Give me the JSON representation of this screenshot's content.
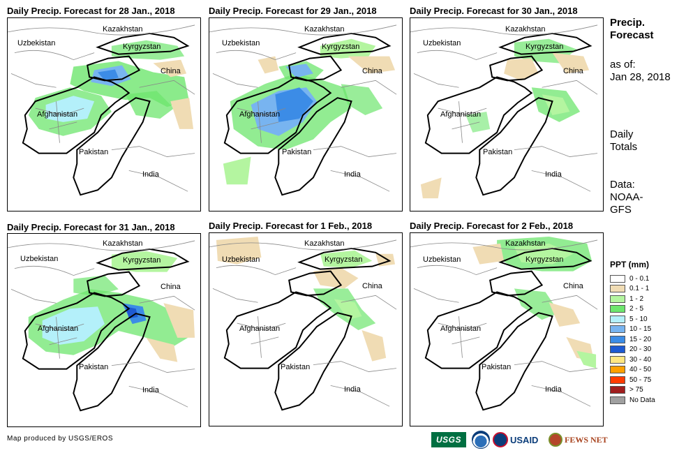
{
  "panels": [
    {
      "title": "Daily Precip. Forecast for 28 Jan., 2018"
    },
    {
      "title": "Daily Precip. Forecast for 29 Jan., 2018"
    },
    {
      "title": "Daily Precip. Forecast for 30 Jan., 2018"
    },
    {
      "title": "Daily Precip. Forecast for 31 Jan., 2018"
    },
    {
      "title": "Daily Precip. Forecast for 1 Feb., 2018"
    },
    {
      "title": "Daily Precip. Forecast for 2 Feb., 2018"
    }
  ],
  "labels": {
    "kazakhstan": "Kazakhstan",
    "uzbekistan": "Uzbekistan",
    "kyrgyzstan": "Kyrgyzstan",
    "china": "China",
    "afghanistan": "Afghanistan",
    "pakistan": "Pakistan",
    "india": "India"
  },
  "side": {
    "heading_line1": "Precip.",
    "heading_line2": "Forecast",
    "asof_line1": "as of:",
    "asof_line2": "Jan 28, 2018",
    "totals_line1": "Daily",
    "totals_line2": "Totals",
    "data_line1": "Data:",
    "data_line2": "NOAA-",
    "data_line3": "GFS"
  },
  "legend": {
    "title": "PPT (mm)",
    "items": [
      {
        "label": "0 - 0.1",
        "color": "#ffffff"
      },
      {
        "label": "0.1 - 1",
        "color": "#f0dcb4"
      },
      {
        "label": "1 - 2",
        "color": "#b4f5a0"
      },
      {
        "label": "2 - 5",
        "color": "#6ee66e"
      },
      {
        "label": "5 - 10",
        "color": "#b4f0fa"
      },
      {
        "label": "10 - 15",
        "color": "#78b4f0"
      },
      {
        "label": "15 - 20",
        "color": "#3c8ce6"
      },
      {
        "label": "20 - 30",
        "color": "#1e5ad2"
      },
      {
        "label": "30 - 40",
        "color": "#ffe682"
      },
      {
        "label": "40 - 50",
        "color": "#ffa000"
      },
      {
        "label": "50 - 75",
        "color": "#ff3c00"
      },
      {
        "label": "> 75",
        "color": "#a01e1e"
      },
      {
        "label": "No Data",
        "color": "#a0a0a0"
      }
    ]
  },
  "credit": "Map produced by USGS/EROS",
  "logos": {
    "usgs": "USGS",
    "usaid": "USAID",
    "fews": "FEWS NET"
  }
}
